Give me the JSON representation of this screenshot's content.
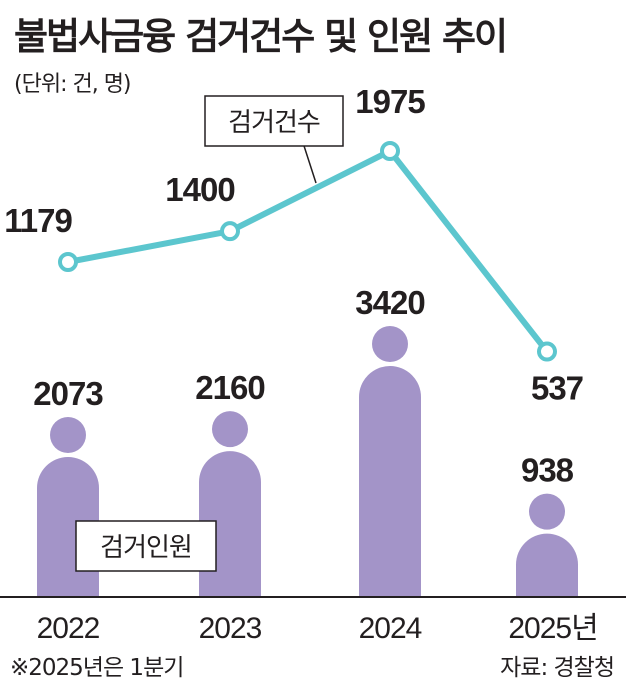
{
  "title": "불법사금융 검거건수 및 인원 추이",
  "unit": "(단위: 건, 명)",
  "note": "※2025년은 1분기",
  "source": "자료: 경찰청",
  "colors": {
    "line": "#5cc6ce",
    "bar": "#a394c8",
    "text": "#231f20",
    "axis": "#231f20"
  },
  "chart_data": {
    "type": "bar+line",
    "categories": [
      "2022",
      "2023",
      "2024",
      "2025년"
    ],
    "series": [
      {
        "name": "검거인원",
        "type": "bar",
        "values": [
          2073,
          2160,
          3420,
          938
        ],
        "marker": "person-icon"
      },
      {
        "name": "검거건수",
        "type": "line",
        "values": [
          1179,
          1400,
          1975,
          537
        ]
      }
    ],
    "grid": false,
    "legend": "inline labels"
  }
}
